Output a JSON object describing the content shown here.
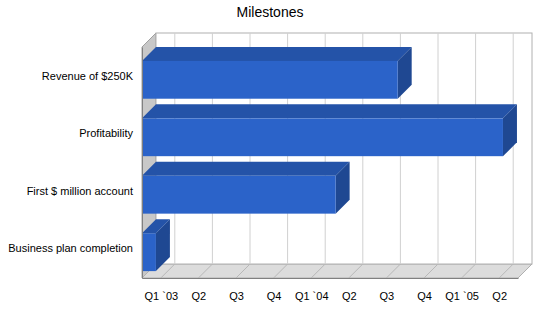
{
  "chart_data": {
    "type": "bar",
    "orientation": "horizontal",
    "title": "Milestones",
    "categories": [
      "Revenue of $250K",
      "Profitability",
      "First $ million account",
      "Business plan completion"
    ],
    "values": [
      6.8,
      9.6,
      5.15,
      0.37
    ],
    "color": "#2b63c9",
    "xlim": [
      0,
      10
    ],
    "xticks": [
      {
        "value": 0.5,
        "label": "Q1 `03"
      },
      {
        "value": 1.5,
        "label": "Q2"
      },
      {
        "value": 2.5,
        "label": "Q3"
      },
      {
        "value": 3.5,
        "label": "Q4"
      },
      {
        "value": 4.5,
        "label": "Q1 `04"
      },
      {
        "value": 5.5,
        "label": "Q2"
      },
      {
        "value": 6.5,
        "label": "Q3"
      },
      {
        "value": 7.5,
        "label": "Q4"
      },
      {
        "value": 8.5,
        "label": "Q1 `05"
      },
      {
        "value": 9.5,
        "label": "Q2"
      }
    ],
    "grid": true
  }
}
